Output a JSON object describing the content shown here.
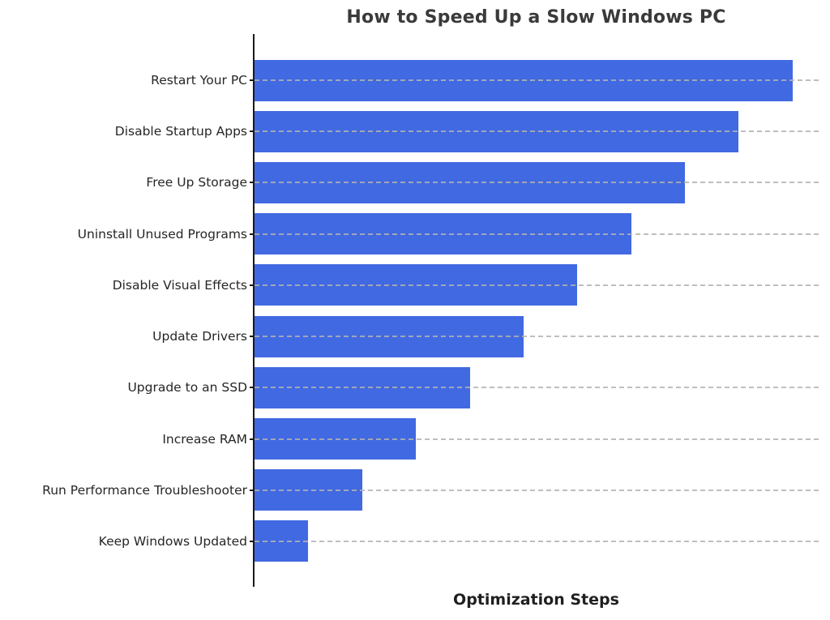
{
  "chart_data": {
    "type": "bar",
    "orientation": "horizontal",
    "title": "How to Speed Up a Slow Windows PC",
    "xlabel": "Optimization Steps",
    "ylabel": "",
    "categories": [
      "Restart Your PC",
      "Disable Startup Apps",
      "Free Up Storage",
      "Uninstall Unused Programs",
      "Disable Visual Effects",
      "Update Drivers",
      "Upgrade to an SSD",
      "Increase RAM",
      "Run Performance Troubleshooter",
      "Keep Windows Updated"
    ],
    "values": [
      10,
      9,
      8,
      7,
      6,
      5,
      4,
      3,
      2,
      1
    ],
    "xlim": [
      0,
      10.5
    ],
    "bar_color": "#4169E1",
    "gridline_color": "#c8c8c8",
    "grid": "dashed horizontal gridlines at each category, drawn over bars",
    "legend": "none",
    "spines": "left only",
    "x_tick_labels": "none"
  }
}
